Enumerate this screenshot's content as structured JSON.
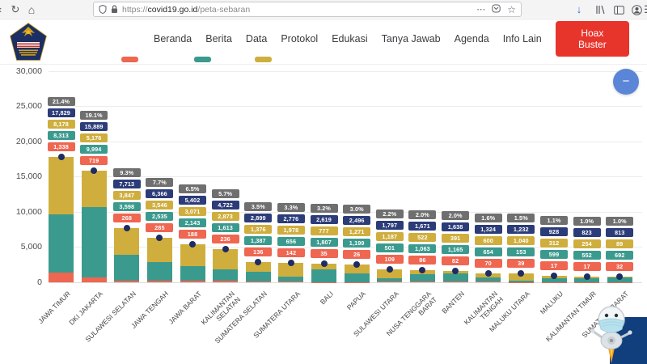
{
  "browser": {
    "url_scheme": "https://",
    "url_host": "covid19.go.id",
    "url_path": "/peta-sebaran"
  },
  "icons": {
    "back": "‹",
    "reload": "↻",
    "home": "⌂",
    "more": "⋯",
    "bookmark": "☆",
    "download": "↓",
    "menu": "☰",
    "minimize": "−"
  },
  "header": {
    "nav_items": [
      "Beranda",
      "Berita",
      "Data",
      "Protokol",
      "Edukasi",
      "Tanya Jawab",
      "Agenda",
      "Info Lain"
    ],
    "cta_label": "Hoax Buster",
    "cta_color": "#e8352c"
  },
  "legend": {
    "swatches": [
      {
        "name": "red",
        "color": "#ef6651",
        "x": 150
      },
      {
        "name": "teal",
        "color": "#3b9a8e",
        "x": 240
      },
      {
        "name": "yellow",
        "color": "#cfae3e",
        "x": 315
      }
    ]
  },
  "chart_data": {
    "type": "bar",
    "stacked": true,
    "title": "",
    "xlabel": "",
    "ylabel": "",
    "ylim": [
      0,
      30000
    ],
    "grid": true,
    "categories": [
      "JAWA TIMUR",
      "DKI JAKARTA",
      "SULAWESI SELATAN",
      "JAWA TENGAH",
      "JAWA BARAT",
      "KALIMANTAN\nSELATAN",
      "SUMATERA SELATAN",
      "SUMATERA UTARA",
      "BALI",
      "PAPUA",
      "SULAWESI UTARA",
      "NUSA TENGGARA\nBARAT",
      "BANTEN",
      "KALIMANTAN\nTENGAH",
      "MALUKU UTARA",
      "MALUKU",
      "KALIMANTAN TIMUR",
      "SUMATERA BARAT"
    ],
    "percent_labels": [
      "21.4%",
      "19.1%",
      "9.3%",
      "7.7%",
      "6.5%",
      "5.7%",
      "3.5%",
      "3.3%",
      "3.2%",
      "3.0%",
      "2.2%",
      "2.0%",
      "2.0%",
      "1.6%",
      "1.5%",
      "1.1%",
      "1.0%",
      "1.0%"
    ],
    "series": [
      {
        "name": "total",
        "color": "#2b3c78",
        "values": [
          17829,
          15889,
          7713,
          6366,
          5402,
          4722,
          2899,
          2776,
          2619,
          2496,
          1797,
          1671,
          1638,
          1324,
          1232,
          928,
          823,
          813
        ]
      },
      {
        "name": "series-yellow",
        "color": "#cfae3e",
        "values": [
          8178,
          5176,
          3847,
          3546,
          3071,
          2873,
          1376,
          1978,
          777,
          1271,
          1187,
          522,
          391,
          600,
          1040,
          312,
          254,
          89
        ]
      },
      {
        "name": "series-teal",
        "color": "#3b9a8e",
        "values": [
          8313,
          9994,
          3598,
          2535,
          2143,
          1613,
          1387,
          656,
          1807,
          1199,
          501,
          1063,
          1165,
          654,
          153,
          599,
          552,
          692
        ]
      },
      {
        "name": "series-red",
        "color": "#ef6651",
        "values": [
          1338,
          719,
          268,
          285,
          188,
          236,
          136,
          142,
          35,
          26,
          109,
          86,
          82,
          70,
          39,
          17,
          17,
          32
        ]
      }
    ],
    "yticks": {
      "values": [
        30000,
        25000,
        20000,
        15000,
        10000,
        5000,
        0
      ],
      "labels": [
        "30,000",
        "25,000",
        "20,000",
        "15,000",
        "10,000",
        "5,000",
        "0"
      ]
    },
    "colors": {
      "percent_box": "#6f6f6f",
      "dot": "#1d2c62"
    },
    "legend_position": "top"
  }
}
